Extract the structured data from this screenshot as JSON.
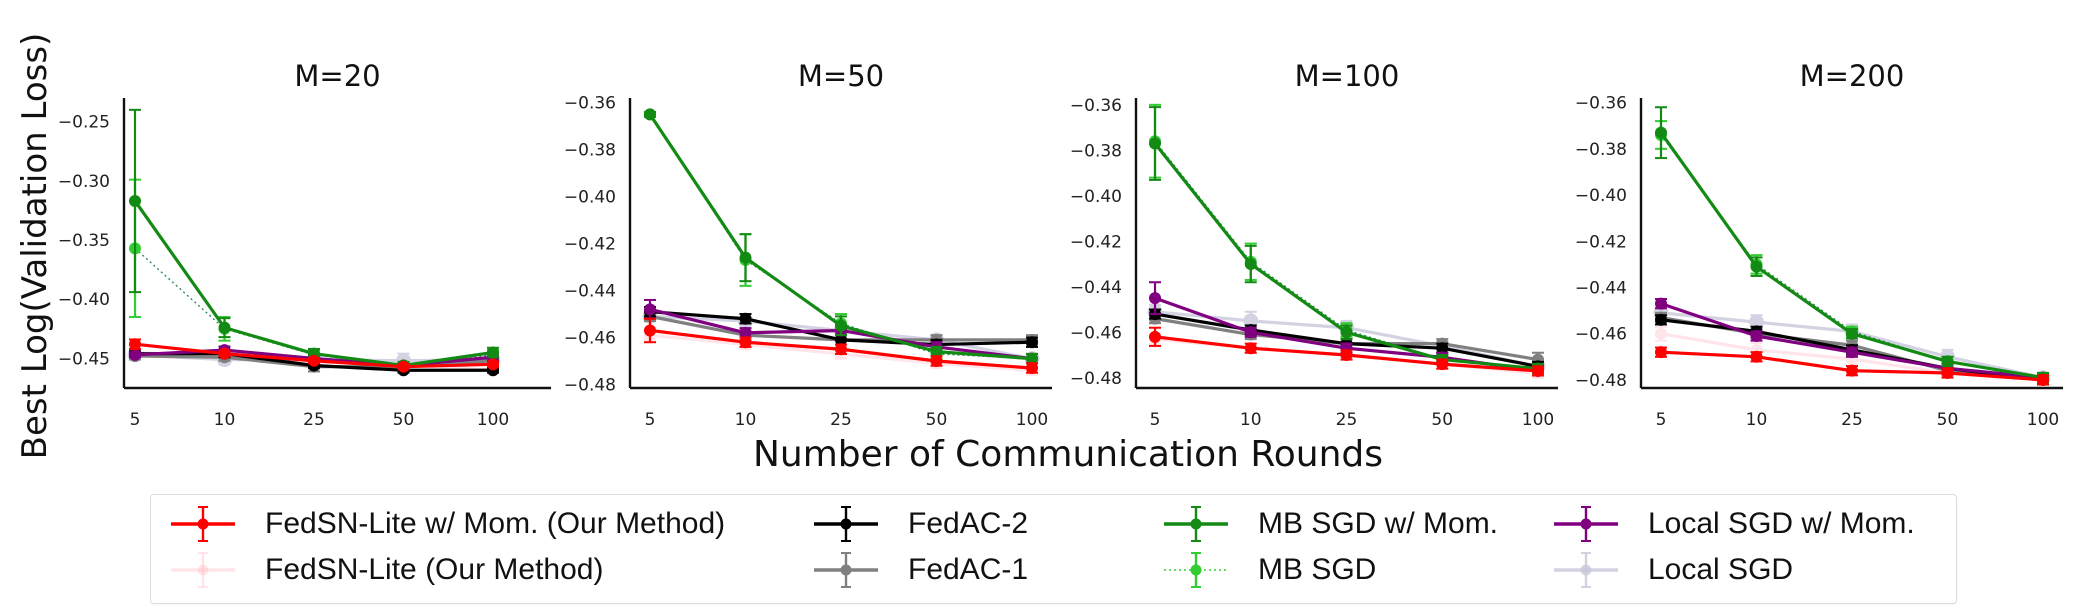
{
  "chart_data": {
    "type": "line",
    "ylabel": "Best Log(Validation Loss)",
    "xlabel": "Number of Communication Rounds",
    "x_categories": [
      "5",
      "10",
      "25",
      "50",
      "100"
    ],
    "legend": {
      "placement": "bottom-center",
      "entries": [
        {
          "key": "fedsn_mom",
          "label": "FedSN-Lite w/ Mom. (Our Method)",
          "color": "#ff0000",
          "style": "solid",
          "alpha": 1.0
        },
        {
          "key": "fedsn",
          "label": "FedSN-Lite (Our Method)",
          "color": "#ffb6c1",
          "style": "solid",
          "alpha": 0.35
        },
        {
          "key": "fedac2",
          "label": "FedAC-2",
          "color": "#000000",
          "style": "solid",
          "alpha": 1.0
        },
        {
          "key": "fedac1",
          "label": "FedAC-1",
          "color": "#808080",
          "style": "solid",
          "alpha": 1.0
        },
        {
          "key": "mbsgd_mom",
          "label": "MB SGD w/ Mom.",
          "color": "#138a13",
          "style": "solid",
          "alpha": 1.0
        },
        {
          "key": "mbsgd",
          "label": "MB SGD",
          "color": "#32cd32",
          "style": "dotted",
          "alpha": 1.0
        },
        {
          "key": "local_mom",
          "label": "Local SGD w/ Mom.",
          "color": "#800080",
          "style": "solid",
          "alpha": 1.0
        },
        {
          "key": "local",
          "label": "Local SGD",
          "color": "#c8c8dc",
          "style": "solid",
          "alpha": 0.8
        }
      ]
    },
    "panels": [
      {
        "title": "M=20",
        "ylim": [
          -0.475,
          -0.23
        ],
        "yticks": [
          -0.25,
          -0.3,
          -0.35,
          -0.4,
          -0.45
        ],
        "ytick_labels": [
          "−0.25",
          "−0.30",
          "−0.35",
          "−0.40",
          "−0.45"
        ],
        "series": {
          "fedsn": {
            "values": [
              -0.445,
              -0.448,
              -0.453,
              -0.455,
              -0.46
            ],
            "err": [
              0.003,
              0.002,
              0.002,
              0.002,
              0.002
            ]
          },
          "local": {
            "values": [
              -0.447,
              -0.451,
              -0.451,
              -0.452,
              -0.451
            ],
            "err": [
              0.003,
              0.004,
              0.003,
              0.006,
              0.004
            ]
          },
          "fedac1": {
            "values": [
              -0.448,
              -0.449,
              -0.457,
              -0.457,
              -0.452
            ],
            "err": [
              0.003,
              0.003,
              0.004,
              0.003,
              0.003
            ]
          },
          "fedac2": {
            "values": [
              -0.446,
              -0.446,
              -0.456,
              -0.46,
              -0.46
            ],
            "err": [
              0.002,
              0.003,
              0.002,
              0.002,
              0.002
            ]
          },
          "mbsgd": {
            "values": [
              -0.357,
              -0.425,
              -0.447,
              -0.456,
              -0.447
            ],
            "err": [
              0.058,
              0.01,
              0.004,
              0.003,
              0.004
            ]
          },
          "local_mom": {
            "values": [
              -0.447,
              -0.443,
              -0.45,
              -0.456,
              -0.449
            ],
            "err": [
              0.002,
              0.003,
              0.003,
              0.003,
              0.003
            ]
          },
          "mbsgd_mom": {
            "values": [
              -0.317,
              -0.424,
              -0.446,
              -0.456,
              -0.445
            ],
            "err": [
              0.077,
              0.008,
              0.004,
              0.003,
              0.004
            ]
          },
          "fedsn_mom": {
            "values": [
              -0.438,
              -0.446,
              -0.452,
              -0.457,
              -0.455
            ],
            "err": [
              0.004,
              0.002,
              0.002,
              0.002,
              0.002
            ]
          }
        }
      },
      {
        "title": "M=50",
        "ylim": [
          -0.4815,
          -0.358
        ],
        "yticks": [
          -0.36,
          -0.38,
          -0.4,
          -0.42,
          -0.44,
          -0.46,
          -0.48
        ],
        "ytick_labels": [
          "−0.36",
          "−0.38",
          "−0.40",
          "−0.42",
          "−0.44",
          "−0.46",
          "−0.48"
        ],
        "series": {
          "fedsn": {
            "values": [
              -0.459,
              -0.463,
              -0.467,
              -0.471,
              -0.474
            ],
            "err": [
              0.002,
              0.002,
              0.002,
              0.002,
              0.002
            ]
          },
          "local": {
            "values": [
              -0.451,
              -0.453,
              -0.457,
              -0.461,
              -0.469
            ],
            "err": [
              0.002,
              0.003,
              0.002,
              0.002,
              0.002
            ]
          },
          "fedac1": {
            "values": [
              -0.451,
              -0.459,
              -0.461,
              -0.461,
              -0.461
            ],
            "err": [
              0.002,
              0.002,
              0.002,
              0.002,
              0.002
            ]
          },
          "fedac2": {
            "values": [
              -0.449,
              -0.452,
              -0.461,
              -0.463,
              -0.462
            ],
            "err": [
              0.002,
              0.002,
              0.002,
              0.002,
              0.002
            ]
          },
          "mbsgd": {
            "values": [
              -0.365,
              -0.427,
              -0.454,
              -0.467,
              -0.469
            ],
            "err": [
              0.001,
              0.011,
              0.004,
              0.002,
              0.002
            ]
          },
          "local_mom": {
            "values": [
              -0.448,
              -0.458,
              -0.457,
              -0.464,
              -0.469
            ],
            "err": [
              0.004,
              0.002,
              0.002,
              0.002,
              0.002
            ]
          },
          "mbsgd_mom": {
            "values": [
              -0.365,
              -0.426,
              -0.455,
              -0.466,
              -0.469
            ],
            "err": [
              0.001,
              0.01,
              0.004,
              0.002,
              0.002
            ]
          },
          "fedsn_mom": {
            "values": [
              -0.457,
              -0.462,
              -0.465,
              -0.47,
              -0.473
            ],
            "err": [
              0.005,
              0.002,
              0.002,
              0.002,
              0.002
            ]
          }
        }
      },
      {
        "title": "M=100",
        "ylim": [
          -0.4845,
          -0.357
        ],
        "yticks": [
          -0.36,
          -0.38,
          -0.4,
          -0.42,
          -0.44,
          -0.46,
          -0.48
        ],
        "ytick_labels": [
          "−0.36",
          "−0.38",
          "−0.40",
          "−0.42",
          "−0.44",
          "−0.46",
          "−0.48"
        ],
        "series": {
          "fedsn": {
            "values": [
              -0.463,
              -0.467,
              -0.47,
              -0.474,
              -0.478
            ],
            "err": [
              0.002,
              0.002,
              0.002,
              0.002,
              0.002
            ]
          },
          "local": {
            "values": [
              -0.451,
              -0.455,
              -0.458,
              -0.466,
              -0.475
            ],
            "err": [
              0.003,
              0.004,
              0.003,
              0.002,
              0.002
            ]
          },
          "fedac1": {
            "values": [
              -0.454,
              -0.461,
              -0.465,
              -0.465,
              -0.472
            ],
            "err": [
              0.002,
              0.002,
              0.002,
              0.002,
              0.003
            ]
          },
          "fedac2": {
            "values": [
              -0.452,
              -0.459,
              -0.465,
              -0.467,
              -0.475
            ],
            "err": [
              0.002,
              0.002,
              0.002,
              0.002,
              0.002
            ]
          },
          "mbsgd": {
            "values": [
              -0.376,
              -0.429,
              -0.459,
              -0.472,
              -0.476
            ],
            "err": [
              0.016,
              0.008,
              0.003,
              0.002,
              0.002
            ]
          },
          "local_mom": {
            "values": [
              -0.445,
              -0.46,
              -0.467,
              -0.471,
              -0.477
            ],
            "err": [
              0.007,
              0.002,
              0.002,
              0.002,
              0.002
            ]
          },
          "mbsgd_mom": {
            "values": [
              -0.377,
              -0.43,
              -0.46,
              -0.472,
              -0.476
            ],
            "err": [
              0.016,
              0.008,
              0.003,
              0.002,
              0.002
            ]
          },
          "fedsn_mom": {
            "values": [
              -0.462,
              -0.467,
              -0.47,
              -0.474,
              -0.477
            ],
            "err": [
              0.004,
              0.002,
              0.002,
              0.002,
              0.002
            ]
          }
        }
      },
      {
        "title": "M=200",
        "ylim": [
          -0.4835,
          -0.358
        ],
        "yticks": [
          -0.36,
          -0.38,
          -0.4,
          -0.42,
          -0.44,
          -0.46,
          -0.48
        ],
        "ytick_labels": [
          "−0.36",
          "−0.38",
          "−0.40",
          "−0.42",
          "−0.44",
          "−0.46",
          "−0.48"
        ],
        "series": {
          "fedsn": {
            "values": [
              -0.46,
              -0.467,
              -0.471,
              -0.477,
              -0.479
            ],
            "err": [
              0.003,
              0.003,
              0.003,
              0.002,
              0.002
            ]
          },
          "local": {
            "values": [
              -0.451,
              -0.455,
              -0.459,
              -0.47,
              -0.479
            ],
            "err": [
              0.002,
              0.003,
              0.003,
              0.003,
              0.002
            ]
          },
          "fedac1": {
            "values": [
              -0.453,
              -0.46,
              -0.465,
              -0.476,
              -0.479
            ],
            "err": [
              0.002,
              0.002,
              0.002,
              0.002,
              0.002
            ]
          },
          "fedac2": {
            "values": [
              -0.454,
              -0.459,
              -0.467,
              -0.475,
              -0.48
            ],
            "err": [
              0.002,
              0.002,
              0.002,
              0.002,
              0.002
            ]
          },
          "mbsgd": {
            "values": [
              -0.374,
              -0.43,
              -0.459,
              -0.472,
              -0.479
            ],
            "err": [
              0.006,
              0.004,
              0.002,
              0.002,
              0.002
            ]
          },
          "local_mom": {
            "values": [
              -0.447,
              -0.461,
              -0.468,
              -0.475,
              -0.479
            ],
            "err": [
              0.002,
              0.002,
              0.002,
              0.002,
              0.002
            ]
          },
          "mbsgd_mom": {
            "values": [
              -0.373,
              -0.431,
              -0.46,
              -0.472,
              -0.479
            ],
            "err": [
              0.011,
              0.004,
              0.002,
              0.002,
              0.002
            ]
          },
          "fedsn_mom": {
            "values": [
              -0.468,
              -0.47,
              -0.476,
              -0.477,
              -0.48
            ],
            "err": [
              0.002,
              0.002,
              0.002,
              0.002,
              0.002
            ]
          }
        }
      }
    ]
  }
}
